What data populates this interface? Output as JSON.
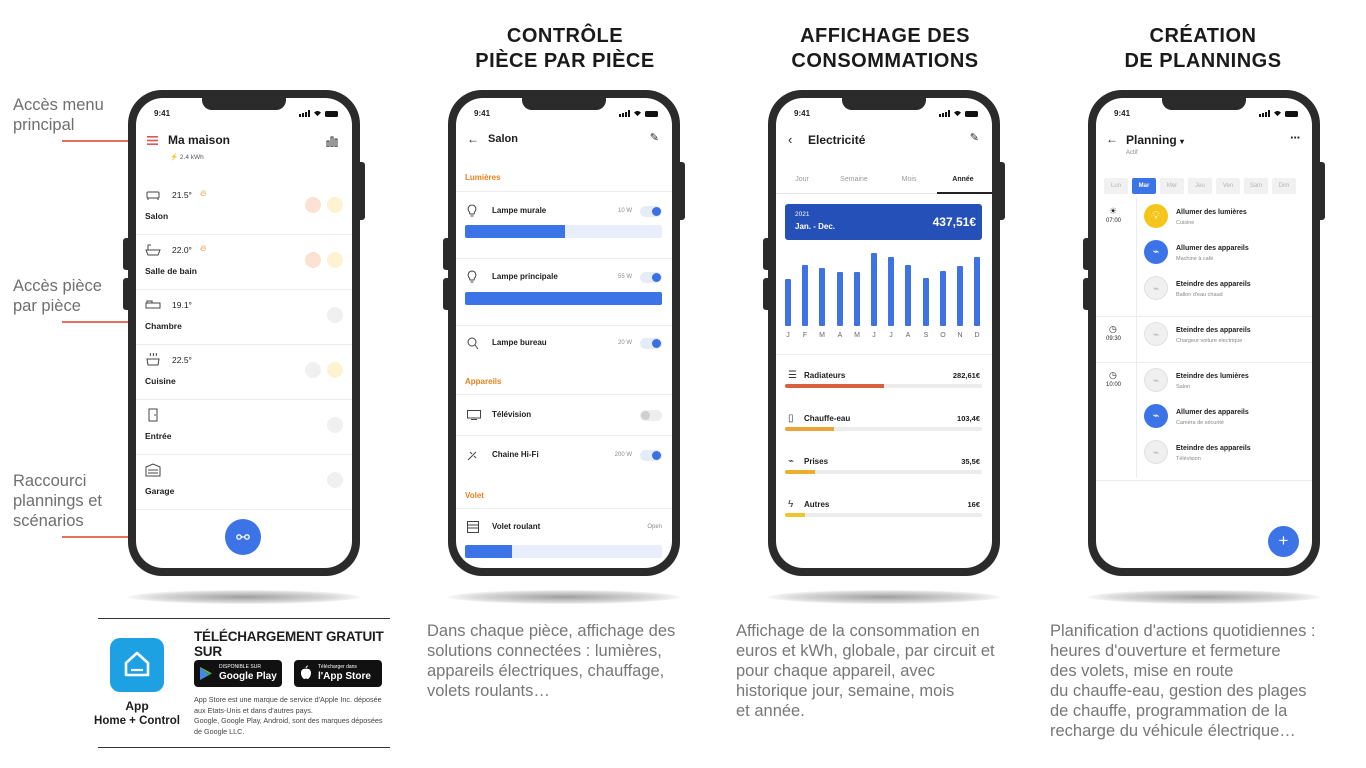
{
  "titles": {
    "col2": [
      "CONTRÔLE",
      "PIÈCE PAR PIÈCE"
    ],
    "col3": [
      "AFFICHAGE DES",
      "CONSOMMATIONS"
    ],
    "col4": [
      "CRÉATION",
      "DE PLANNINGS"
    ]
  },
  "callouts": {
    "menu": [
      "Accès menu",
      "principal"
    ],
    "room": [
      "Accès pièce",
      "par pièce"
    ],
    "shortcut": [
      "Raccourci",
      "plannings et",
      "scénarios"
    ]
  },
  "status_time": "9:41",
  "phone1": {
    "title": "Ma maison",
    "energy": "2.4 kWh",
    "rooms": [
      {
        "name": "Salon",
        "temp": "21.5°",
        "icon": "sofa-icon",
        "heating": true
      },
      {
        "name": "Salle de bain",
        "temp": "22.0°",
        "icon": "bathtub-icon",
        "heating": true
      },
      {
        "name": "Chambre",
        "temp": "19.1°",
        "icon": "bed-icon",
        "heating": false
      },
      {
        "name": "Cuisine",
        "temp": "22.5°",
        "icon": "pot-icon",
        "heating": false
      },
      {
        "name": "Entrée",
        "temp": "",
        "icon": "door-icon",
        "heating": false
      },
      {
        "name": "Garage",
        "temp": "",
        "icon": "garage-icon",
        "heating": false
      }
    ]
  },
  "phone2": {
    "title": "Salon",
    "sections": {
      "lights": "Lumières",
      "devices": "Appareils",
      "shutter": "Volet"
    },
    "lights": [
      {
        "name": "Lampe murale",
        "watt": "10 W",
        "on": true,
        "level": 0.51
      },
      {
        "name": "Lampe principale",
        "watt": "55 W",
        "on": true,
        "level": 1.0
      },
      {
        "name": "Lampe bureau",
        "watt": "20 W",
        "on": true
      }
    ],
    "devices": [
      {
        "name": "Télévision",
        "watt": "",
        "on": false
      },
      {
        "name": "Chaine Hi-Fi",
        "watt": "200 W",
        "on": true
      }
    ],
    "shutter": {
      "name": "Volet roulant",
      "state": "Open",
      "level": 0.24
    }
  },
  "phone3": {
    "title": "Electricité",
    "tabs": [
      "Jour",
      "Semaine",
      "Mois",
      "Année"
    ],
    "active_tab": "Année",
    "period_year": "2021",
    "period_range": "Jan. - Dec.",
    "total": "437,51€",
    "months": [
      "J",
      "F",
      "M",
      "A",
      "M",
      "J",
      "J",
      "A",
      "S",
      "O",
      "N",
      "D"
    ],
    "month_values": [
      0.59,
      0.76,
      0.72,
      0.68,
      0.67,
      0.91,
      0.86,
      0.76,
      0.6,
      0.69,
      0.75,
      0.86
    ],
    "consumption": [
      {
        "name": "Radiateurs",
        "value": "282,61€",
        "share": 0.5,
        "color": "#d9603f"
      },
      {
        "name": "Chauffe-eau",
        "value": "103,4€",
        "share": 0.25,
        "color": "#eda437"
      },
      {
        "name": "Prises",
        "value": "35,5€",
        "share": 0.15,
        "color": "#edae2e"
      },
      {
        "name": "Autres",
        "value": "16€",
        "share": 0.1,
        "color": "#f0c42f"
      }
    ]
  },
  "phone4": {
    "title": "Planning",
    "subtitle": "Actif",
    "days": [
      "Lun",
      "Mar",
      "Mer",
      "Jeu",
      "Ven",
      "Sam",
      "Dim"
    ],
    "active_day": "Mar",
    "groups": [
      {
        "time": "07:00",
        "actions": [
          {
            "title": "Allumer des lumières",
            "sub": "Cuisine",
            "style": "yellow"
          },
          {
            "title": "Allumer des appareils",
            "sub": "Machine à café",
            "style": "blue"
          },
          {
            "title": "Eteindre des appareils",
            "sub": "Ballon d'eau chaud",
            "style": "grey"
          }
        ]
      },
      {
        "time": "09:30",
        "actions": [
          {
            "title": "Eteindre des appareils",
            "sub": "Chargeur voiture electrique",
            "style": "grey"
          }
        ]
      },
      {
        "time": "10:00",
        "actions": [
          {
            "title": "Eteindre des lumières",
            "sub": "Salon",
            "style": "grey"
          },
          {
            "title": "Allumer des appareils",
            "sub": "Caméra de sécurité",
            "style": "blue"
          },
          {
            "title": "Eteindre des appareils",
            "sub": "Télévision",
            "style": "grey"
          }
        ]
      }
    ]
  },
  "download": {
    "heading": "TÉLÉCHARGEMENT GRATUIT SUR",
    "app_name_1": "App",
    "app_name_2": "Home + Control",
    "gp_small": "DISPONIBLE SUR",
    "gp_big": "Google Play",
    "as_small": "Télécharger dans",
    "as_big": "l'App Store",
    "legal": [
      "App Store est une marque de service d'Apple Inc. déposée",
      "aux Etats-Unis et dans d'autres pays.",
      "Google, Google Play, Android, sont des marques déposées",
      "de Google LLC."
    ]
  },
  "descriptions": {
    "col2": [
      "Dans chaque pièce, affichage des",
      "solutions connectées : lumières,",
      "appareils électriques, chauffage,",
      "volets roulants…"
    ],
    "col3": [
      "Affichage de la consommation en",
      "euros et kWh, globale, par circuit et",
      "pour chaque appareil, avec",
      "historique jour, semaine, mois",
      "et année."
    ],
    "col4": [
      "Planification d'actions quotidiennes :",
      "heures d'ouverture et fermeture",
      "des volets, mise en route",
      "du chauffe-eau, gestion des plages",
      "de chauffe, programmation de la",
      "recharge du véhicule électrique…"
    ]
  },
  "colors": {
    "accent_blue": "#3c74e7",
    "heading_blue": "#2550b8",
    "orange": "#e9801c",
    "callout_line": "#e37161"
  }
}
